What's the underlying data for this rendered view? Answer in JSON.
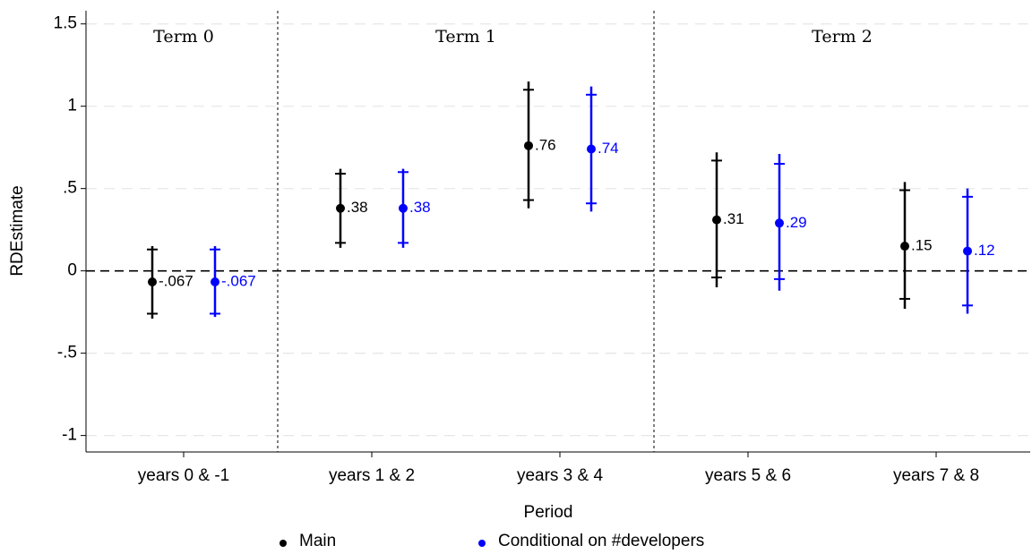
{
  "chart_data": {
    "type": "errorbar",
    "x_label": "Period",
    "y_label": "RDEstimate",
    "categories": [
      "years 0 & -1",
      "years 1 & 2",
      "years 3 & 4",
      "years 5 & 6",
      "years 7 & 8"
    ],
    "ylim": [
      -1.1,
      1.58
    ],
    "yticks": [
      {
        "value": -1,
        "label": "-1"
      },
      {
        "value": -0.5,
        "label": "-.5"
      },
      0,
      {
        "value": 0.5,
        "label": ".5"
      },
      1,
      1.5
    ],
    "grid": true,
    "terms": [
      {
        "label": "Term 0",
        "categories": [
          0,
          0
        ]
      },
      {
        "label": "Term 1",
        "categories": [
          1,
          2
        ]
      },
      {
        "label": "Term 2",
        "categories": [
          3,
          4
        ]
      }
    ],
    "series": [
      {
        "name": "Main",
        "color": "#000000",
        "values": [
          -0.067,
          0.38,
          0.76,
          0.31,
          0.15
        ],
        "value_labels": [
          "-.067",
          ".38",
          ".76",
          ".31",
          ".15"
        ],
        "lower": [
          -0.29,
          0.14,
          0.38,
          -0.1,
          -0.23
        ],
        "upper": [
          0.15,
          0.62,
          1.15,
          0.72,
          0.54
        ],
        "lower90": [
          -0.26,
          0.17,
          0.43,
          -0.04,
          -0.17
        ],
        "upper90": [
          0.13,
          0.59,
          1.1,
          0.67,
          0.49
        ]
      },
      {
        "name": "Conditional on #developers",
        "color": "#0000ff",
        "values": [
          -0.067,
          0.38,
          0.74,
          0.29,
          0.12
        ],
        "value_labels": [
          "-.067",
          ".38",
          ".74",
          ".29",
          ".12"
        ],
        "lower": [
          -0.28,
          0.14,
          0.36,
          -0.12,
          -0.26
        ],
        "upper": [
          0.15,
          0.62,
          1.12,
          0.71,
          0.5
        ],
        "lower90": [
          -0.26,
          0.17,
          0.41,
          -0.05,
          -0.21
        ],
        "upper90": [
          0.13,
          0.6,
          1.07,
          0.65,
          0.45
        ]
      }
    ]
  }
}
